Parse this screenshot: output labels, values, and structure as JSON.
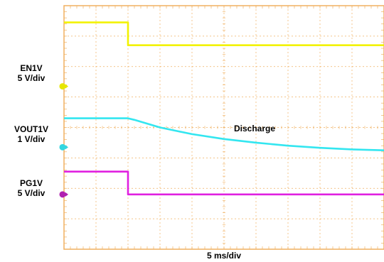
{
  "chart_data": {
    "type": "line",
    "time_scale": "5 ms/div",
    "grid": true,
    "x_divisions": 10,
    "y_divisions": 8,
    "x_unit": "div",
    "y_unit": "div",
    "series": [
      {
        "name": "EN1V",
        "scale": "5 V/div",
        "color": "#f2f200",
        "marker_color": "#e6e600",
        "ground_div": 5.35,
        "points": [
          [
            0,
            7.45
          ],
          [
            2.0,
            7.45
          ],
          [
            2.0,
            6.7
          ],
          [
            10,
            6.7
          ]
        ]
      },
      {
        "name": "VOUT1V",
        "scale": "1 V/div",
        "color": "#33e6f0",
        "marker_color": "#33d6e0",
        "ground_div": 3.35,
        "points": [
          [
            0,
            4.3
          ],
          [
            2.0,
            4.3
          ],
          [
            2.2,
            4.25
          ],
          [
            3.0,
            4.0
          ],
          [
            4.0,
            3.78
          ],
          [
            5.0,
            3.62
          ],
          [
            6.0,
            3.5
          ],
          [
            7.0,
            3.4
          ],
          [
            8.0,
            3.33
          ],
          [
            9.0,
            3.28
          ],
          [
            10,
            3.25
          ]
        ]
      },
      {
        "name": "PG1V",
        "scale": "5 V/div",
        "color": "#e020e0",
        "marker_color": "#b020b0",
        "ground_div": 1.8,
        "points": [
          [
            0,
            2.55
          ],
          [
            2.0,
            2.55
          ],
          [
            2.0,
            1.8
          ],
          [
            10,
            1.8
          ]
        ]
      }
    ],
    "annotations": [
      {
        "text": "Discharge",
        "x": 5.2,
        "y": 4.2
      }
    ]
  }
}
